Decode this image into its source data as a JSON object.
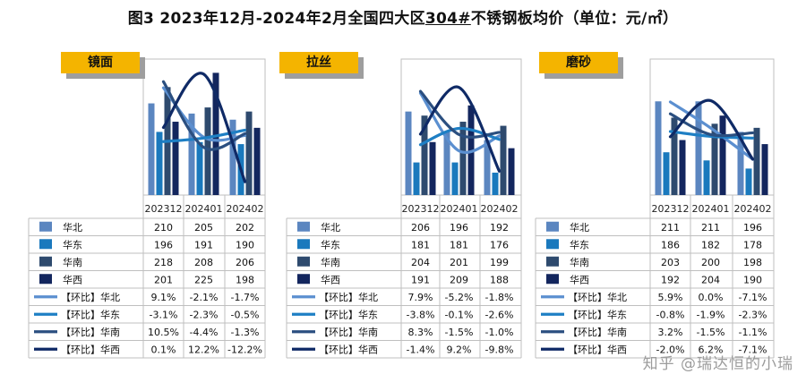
{
  "title": {
    "prefix": "图3  2023年12月-2024年2月全国四大区",
    "underlined": "304#",
    "suffix": "不锈钢板均价（单位：元/㎡）"
  },
  "watermark": "知乎 @瑞达恒的小瑞",
  "colors": {
    "north": "#5b86c0",
    "east": "#1a79bd",
    "south": "#2e4a6e",
    "west": "#13265e",
    "tag": "#f4b400",
    "grid": "#bfbfbf"
  },
  "chart_data": [
    {
      "type": "bar",
      "tag": "镜面",
      "categories": [
        "202312",
        "202401",
        "202402"
      ],
      "series": [
        {
          "name": "华北",
          "values": [
            210,
            205,
            202
          ]
        },
        {
          "name": "华东",
          "values": [
            196,
            191,
            190
          ]
        },
        {
          "name": "华南",
          "values": [
            218,
            208,
            206
          ]
        },
        {
          "name": "华西",
          "values": [
            201,
            225,
            198
          ]
        }
      ],
      "mom_series": [
        {
          "name": "【环比】华北",
          "values": [
            9.1,
            -2.1,
            -1.7
          ],
          "labels": [
            "9.1%",
            "-2.1%",
            "-1.7%"
          ]
        },
        {
          "name": "【环比】华东",
          "values": [
            -3.1,
            -2.3,
            -0.5
          ],
          "labels": [
            "-3.1%",
            "-2.3%",
            "-0.5%"
          ]
        },
        {
          "name": "【环比】华南",
          "values": [
            10.5,
            -4.4,
            -1.3
          ],
          "labels": [
            "10.5%",
            "-4.4%",
            "-1.3%"
          ]
        },
        {
          "name": "【环比】华西",
          "values": [
            0.1,
            12.2,
            -12.2
          ],
          "labels": [
            "0.1%",
            "12.2%",
            "-12.2%"
          ]
        }
      ]
    },
    {
      "type": "bar",
      "tag": "拉丝",
      "categories": [
        "202312",
        "202401",
        "202402"
      ],
      "series": [
        {
          "name": "华北",
          "values": [
            206,
            196,
            192
          ]
        },
        {
          "name": "华东",
          "values": [
            181,
            181,
            176
          ]
        },
        {
          "name": "华南",
          "values": [
            204,
            201,
            199
          ]
        },
        {
          "name": "华西",
          "values": [
            191,
            209,
            188
          ]
        }
      ],
      "mom_series": [
        {
          "name": "【环比】华北",
          "values": [
            7.9,
            -5.2,
            -1.8
          ],
          "labels": [
            "7.9%",
            "-5.2%",
            "-1.8%"
          ]
        },
        {
          "name": "【环比】华东",
          "values": [
            -3.8,
            -0.1,
            -2.6
          ],
          "labels": [
            "-3.8%",
            "-0.1%",
            "-2.6%"
          ]
        },
        {
          "name": "【环比】华南",
          "values": [
            8.3,
            -1.5,
            -1.0
          ],
          "labels": [
            "8.3%",
            "-1.5%",
            "-1.0%"
          ]
        },
        {
          "name": "【环比】华西",
          "values": [
            -1.4,
            9.2,
            -9.8
          ],
          "labels": [
            "-1.4%",
            "9.2%",
            "-9.8%"
          ]
        }
      ]
    },
    {
      "type": "bar",
      "tag": "磨砂",
      "categories": [
        "202312",
        "202401",
        "202402"
      ],
      "series": [
        {
          "name": "华北",
          "values": [
            211,
            211,
            196
          ]
        },
        {
          "name": "华东",
          "values": [
            186,
            182,
            178
          ]
        },
        {
          "name": "华南",
          "values": [
            203,
            200,
            198
          ]
        },
        {
          "name": "华西",
          "values": [
            192,
            204,
            190
          ]
        }
      ],
      "mom_series": [
        {
          "name": "【环比】华北",
          "values": [
            5.9,
            0.0,
            -7.1
          ],
          "labels": [
            "5.9%",
            "0.0%",
            "-7.1%"
          ]
        },
        {
          "name": "【环比】华东",
          "values": [
            -0.8,
            -1.9,
            -2.3
          ],
          "labels": [
            "-0.8%",
            "-1.9%",
            "-2.3%"
          ]
        },
        {
          "name": "【环比】华南",
          "values": [
            3.2,
            -1.5,
            -1.1
          ],
          "labels": [
            "3.2%",
            "-1.5%",
            "-1.1%"
          ]
        },
        {
          "name": "【环比】华西",
          "values": [
            -2.0,
            6.2,
            -7.1
          ],
          "labels": [
            "-2.0%",
            "6.2%",
            "-7.1%"
          ]
        }
      ]
    }
  ]
}
